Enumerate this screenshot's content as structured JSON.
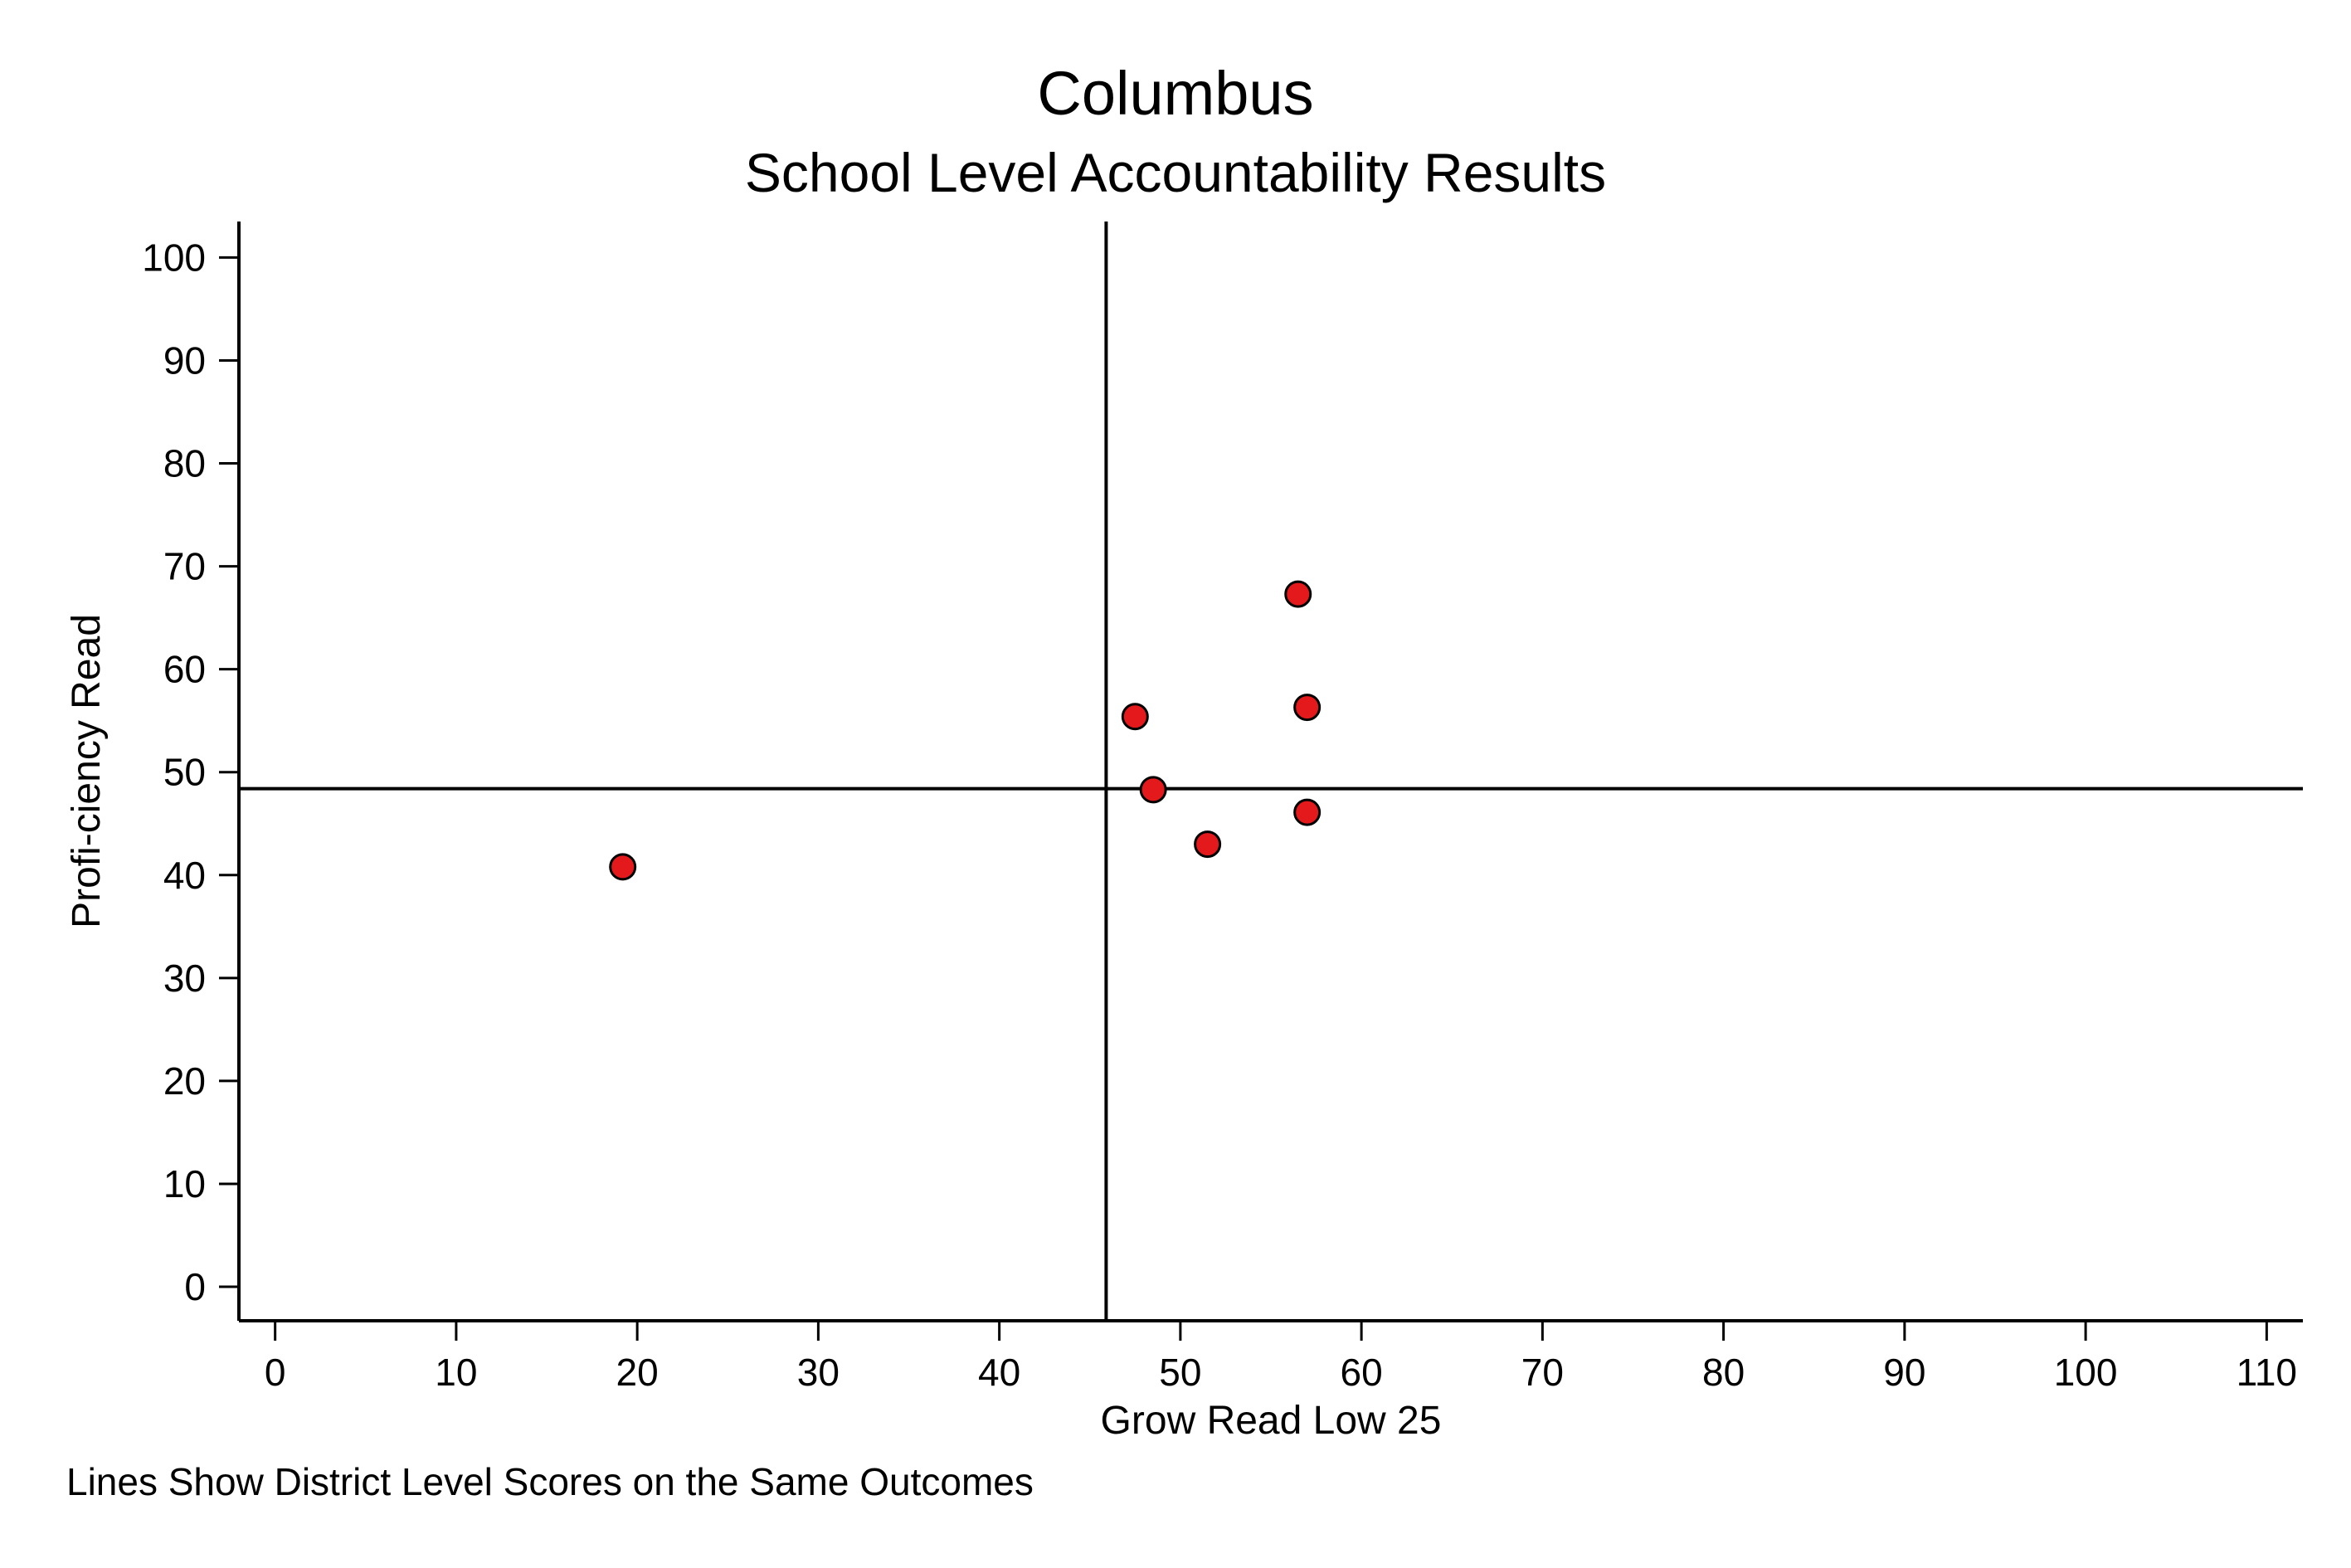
{
  "chart_data": {
    "type": "scatter",
    "title": "Columbus",
    "subtitle": "School Level Accountability Results",
    "xlabel": "Grow Read Low 25",
    "ylabel": "Profi-ciency Read",
    "note": "Lines Show District Level Scores on the Same Outcomes",
    "xlim": [
      -2,
      112
    ],
    "ylim": [
      -3.3,
      103.5
    ],
    "x_ticks": [
      0,
      10,
      20,
      30,
      40,
      50,
      60,
      70,
      80,
      90,
      100,
      110
    ],
    "y_ticks": [
      0,
      10,
      20,
      30,
      40,
      50,
      60,
      70,
      80,
      90,
      100
    ],
    "grid": false,
    "reference_lines": {
      "x": 45.9,
      "y": 48.4
    },
    "series": [
      {
        "marker_color": "#e3191c",
        "marker_edge_color": "#000000",
        "points": [
          {
            "x": 19.2,
            "y": 40.8
          },
          {
            "x": 47.5,
            "y": 55.4
          },
          {
            "x": 48.5,
            "y": 48.3
          },
          {
            "x": 51.5,
            "y": 43.0
          },
          {
            "x": 56.5,
            "y": 67.3
          },
          {
            "x": 57.0,
            "y": 56.3
          },
          {
            "x": 57.0,
            "y": 46.1
          }
        ]
      }
    ]
  }
}
